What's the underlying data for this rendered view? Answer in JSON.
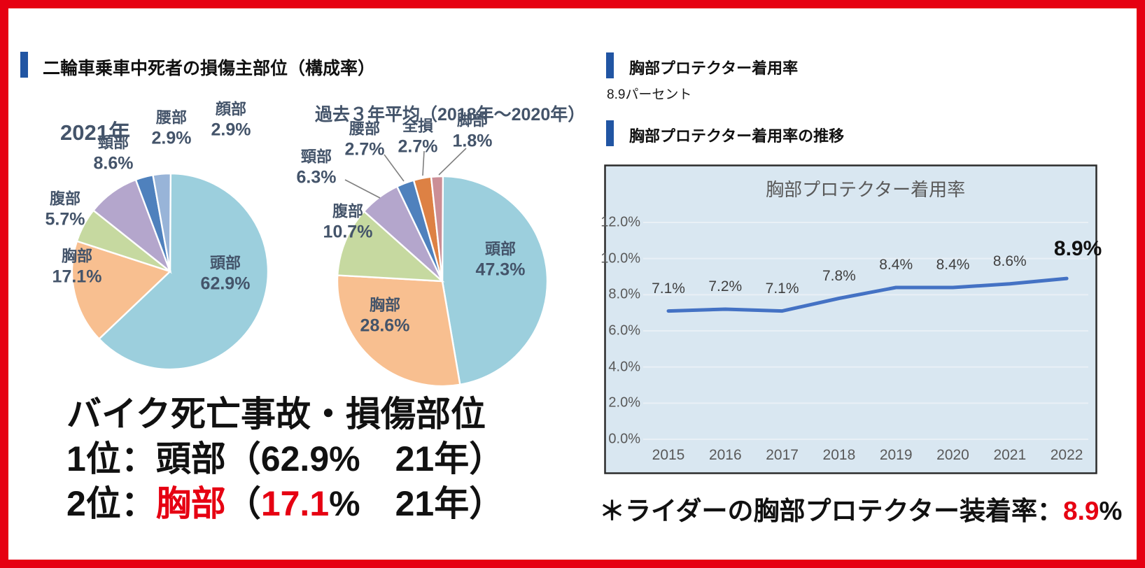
{
  "canvas": {
    "border_color": "#e60012",
    "background": "#ffffff",
    "accent_blue": "#2155a3",
    "red_text": "#e60012"
  },
  "left_panel": {
    "header": {
      "label": "二輪車乗車中死者の損傷主部位（構成率）"
    },
    "summary": {
      "line1": [
        {
          "text": "バイク死亡事故・損傷部位",
          "color": "#111111"
        }
      ],
      "line2": [
        {
          "text": "1位：頭部（62.9%　21年）",
          "color": "#111111"
        }
      ],
      "line3": [
        {
          "text": "2位：",
          "color": "#111111"
        },
        {
          "text": "胸部",
          "color": "#e60012"
        },
        {
          "text": "（",
          "color": "#111111"
        },
        {
          "text": "17.1",
          "color": "#e60012"
        },
        {
          "text": "%　21年）",
          "color": "#111111"
        }
      ]
    }
  },
  "right_panel": {
    "header1": {
      "label": "胸部プロテクター着用率"
    },
    "rate_text": "8.9パーセント",
    "header2": {
      "label": "胸部プロテクター着用率の推移"
    },
    "footnote": [
      {
        "text": "＊ライダーの胸部プロテクター装着率：",
        "color": "#111111"
      },
      {
        "text": "8.9",
        "color": "#e60012"
      },
      {
        "text": "%",
        "color": "#111111"
      }
    ]
  },
  "chart_data": [
    {
      "type": "pie",
      "title": "2021年",
      "slices": [
        {
          "label": "頭部",
          "value": 62.9,
          "value_label": "62.9%",
          "color": "#9ccfdd"
        },
        {
          "label": "胸部",
          "value": 17.1,
          "value_label": "17.1%",
          "color": "#f8bf90"
        },
        {
          "label": "腹部",
          "value": 5.7,
          "value_label": "5.7%",
          "color": "#c6d9a0"
        },
        {
          "label": "頸部",
          "value": 8.6,
          "value_label": "8.6%",
          "color": "#b4a6cc"
        },
        {
          "label": "腰部",
          "value": 2.9,
          "value_label": "2.9%",
          "color": "#4f81bd"
        },
        {
          "label": "顔部",
          "value": 2.9,
          "value_label": "2.9%",
          "color": "#98b4d8"
        }
      ]
    },
    {
      "type": "pie",
      "title": "過去３年平均（2018年～2020年）",
      "slices": [
        {
          "label": "頭部",
          "value": 47.3,
          "value_label": "47.3%",
          "color": "#9ccfdd"
        },
        {
          "label": "胸部",
          "value": 28.6,
          "value_label": "28.6%",
          "color": "#f8bf90"
        },
        {
          "label": "腹部",
          "value": 10.7,
          "value_label": "10.7%",
          "color": "#c6d9a0"
        },
        {
          "label": "頸部",
          "value": 6.3,
          "value_label": "6.3%",
          "color": "#b4a6cc"
        },
        {
          "label": "腰部",
          "value": 2.7,
          "value_label": "2.7%",
          "color": "#4f81bd"
        },
        {
          "label": "全損",
          "value": 2.7,
          "value_label": "2.7%",
          "color": "#dd8144"
        },
        {
          "label": "脚部",
          "value": 1.8,
          "value_label": "1.8%",
          "color": "#cb8e96"
        }
      ]
    },
    {
      "type": "line",
      "title": "胸部プロテクター着用率",
      "x_labels": [
        "2015",
        "2016",
        "2017",
        "2018",
        "2019",
        "2020",
        "2021",
        "2022"
      ],
      "values": [
        7.1,
        7.2,
        7.1,
        7.8,
        8.4,
        8.4,
        8.6,
        8.9
      ],
      "point_labels": [
        "7.1%",
        "7.2%",
        "7.1%",
        "7.8%",
        "8.4%",
        "8.4%",
        "8.6%",
        "8.9%"
      ],
      "y_ticks": [
        "12.0%",
        "10.0%",
        "8.0%",
        "6.0%",
        "4.0%",
        "2.0%",
        "0.0%"
      ],
      "ylim": [
        0,
        12
      ],
      "grid": true,
      "legend": "none",
      "line_color": "#4472c4",
      "plot_bg": "#d9e7f1",
      "plot_border": "#2b2b2b"
    }
  ]
}
